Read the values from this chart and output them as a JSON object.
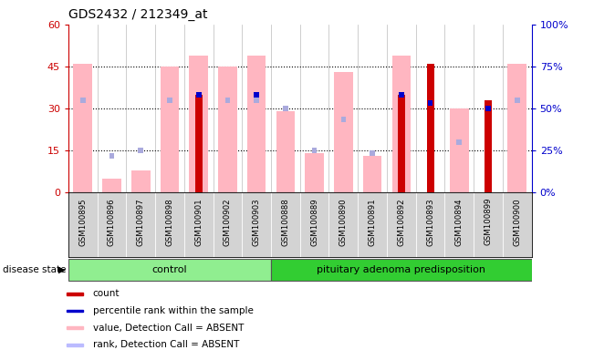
{
  "title": "GDS2432 / 212349_at",
  "samples": [
    "GSM100895",
    "GSM100896",
    "GSM100897",
    "GSM100898",
    "GSM100901",
    "GSM100902",
    "GSM100903",
    "GSM100888",
    "GSM100889",
    "GSM100890",
    "GSM100891",
    "GSM100892",
    "GSM100893",
    "GSM100894",
    "GSM100899",
    "GSM100900"
  ],
  "n_control": 7,
  "n_adenoma": 9,
  "red_bars": [
    0,
    0,
    0,
    0,
    35,
    0,
    0,
    0,
    0,
    0,
    0,
    35,
    46,
    0,
    33,
    0
  ],
  "pink_bars": [
    46,
    5,
    8,
    45,
    49,
    45,
    49,
    29,
    14,
    43,
    13,
    49,
    0,
    30,
    0,
    46
  ],
  "blue_squares": [
    0,
    0,
    0,
    0,
    35,
    0,
    35,
    0,
    0,
    0,
    0,
    35,
    32,
    0,
    30,
    0
  ],
  "lavender_squares": [
    33,
    13,
    15,
    33,
    0,
    33,
    33,
    30,
    15,
    26,
    14,
    0,
    0,
    18,
    30,
    33
  ],
  "ylim_left": [
    0,
    60
  ],
  "ylim_right": [
    0,
    100
  ],
  "yticks_left": [
    0,
    15,
    30,
    45,
    60
  ],
  "yticks_right": [
    0,
    25,
    50,
    75,
    100
  ],
  "ytick_labels_left": [
    "0",
    "15",
    "30",
    "45",
    "60"
  ],
  "ytick_labels_right": [
    "0%",
    "25%",
    "50%",
    "75%",
    "100%"
  ],
  "left_axis_color": "#CC0000",
  "right_axis_color": "#0000CC",
  "control_color": "#90EE90",
  "adenoma_color": "#32CD32",
  "plot_bg": "#FFFFFF",
  "label_bg": "#D3D3D3",
  "label_disease_state": "disease state",
  "label_control": "control",
  "label_adenoma": "pituitary adenoma predisposition",
  "legend_items": [
    "count",
    "percentile rank within the sample",
    "value, Detection Call = ABSENT",
    "rank, Detection Call = ABSENT"
  ],
  "legend_colors": [
    "#CC0000",
    "#0000CC",
    "#FFB6C1",
    "#BBBBFF"
  ]
}
